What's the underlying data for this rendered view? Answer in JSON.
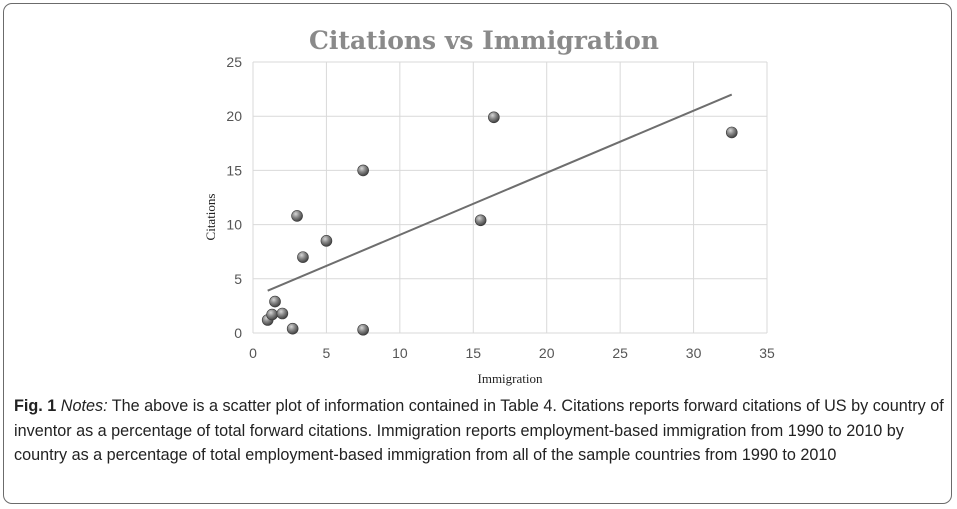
{
  "chart_data": {
    "type": "scatter",
    "title": "Citations vs Immigration",
    "xlabel": "Immigration",
    "ylabel": "Citations",
    "xlim": [
      0,
      35
    ],
    "ylim": [
      0,
      25
    ],
    "x_ticks": [
      0,
      5,
      10,
      15,
      20,
      25,
      30,
      35
    ],
    "y_ticks": [
      0,
      5,
      10,
      15,
      20,
      25
    ],
    "grid": true,
    "legend": "none",
    "series": [
      {
        "x": [
          1.0,
          1.3,
          1.5,
          2.0,
          2.7,
          3.0,
          3.4,
          5.0,
          7.5,
          7.5,
          15.5,
          16.4,
          32.6
        ],
        "y": [
          1.2,
          1.7,
          2.9,
          1.8,
          0.4,
          10.8,
          7.0,
          8.5,
          15.0,
          0.3,
          10.4,
          19.9,
          18.5
        ]
      }
    ],
    "trendline": {
      "x": [
        1.0,
        32.6
      ],
      "y": [
        3.9,
        22.0
      ]
    },
    "colors": {
      "marker": "#6a6a6a",
      "trendline": "#6e6e6e",
      "grid": "#d9d9d9",
      "title": "#8a8a8a"
    }
  },
  "caption": {
    "fig_label": "Fig. 1",
    "notes_label": "Notes:",
    "text": " The above is a scatter plot of information contained in Table 4. Citations reports forward citations of US by country of inventor as a percentage of total forward citations. Immigration reports employment-based immigration from 1990 to 2010 by country as a percentage of total employment-based immigration from all of the sample countries from 1990 to 2010"
  }
}
